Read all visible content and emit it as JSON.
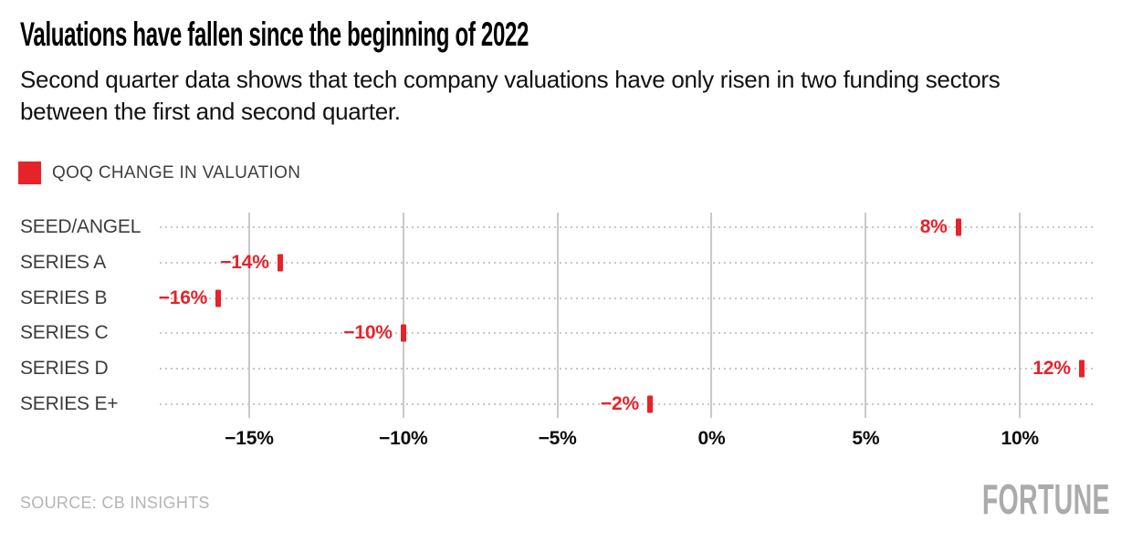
{
  "header": {
    "title": "Valuations have fallen since the beginning of 2022",
    "subtitle": "Second quarter data shows that tech company valuations have only risen in two funding sectors between the first and second quarter."
  },
  "legend": {
    "label": "QOQ CHANGE IN VALUATION",
    "swatch_color": "#e62329"
  },
  "chart_data": {
    "type": "bar",
    "orientation": "horizontal",
    "title": "QOQ CHANGE IN VALUATION",
    "categories": [
      "SEED/ANGEL",
      "SERIES A",
      "SERIES B",
      "SERIES C",
      "SERIES D",
      "SERIES E+"
    ],
    "values": [
      8,
      -14,
      -16,
      -10,
      12,
      -2
    ],
    "value_labels": [
      "8%",
      "−14%",
      "−16%",
      "−10%",
      "12%",
      "−2%"
    ],
    "xtick_values": [
      -15,
      -10,
      -5,
      0,
      5,
      10
    ],
    "xtick_labels": [
      "−15%",
      "−10%",
      "−5%",
      "0%",
      "5%",
      "10%"
    ],
    "xlim": [
      -17.9,
      12.6
    ],
    "grid": "vertical-solid-gridlines-with-dotted-row-leaders",
    "legend_position": "top-left",
    "marker_color": "#e62329"
  },
  "footer": {
    "source": "SOURCE: CB INSIGHTS",
    "brand": "FORTUNE"
  },
  "colors": {
    "accent_red": "#e62329",
    "category_label": "#3c3c3c",
    "axis_label": "#0b0b0b",
    "gridline": "#c9c9c9",
    "leader_dots": "#c8c8c8",
    "source_text": "#b5b5b5",
    "brand_text": "#ababab",
    "background": "#ffffff"
  }
}
